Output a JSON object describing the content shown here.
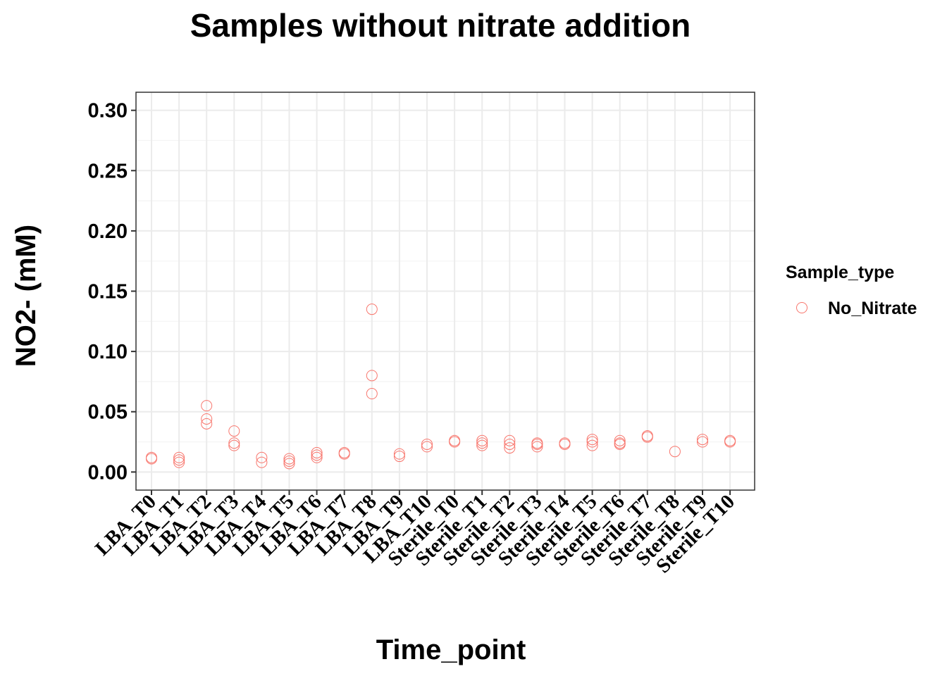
{
  "chart_data": {
    "type": "scatter",
    "title": "Samples without nitrate addition",
    "xlabel": "Time_point",
    "ylabel": "NO2- (mM)",
    "categories": [
      "LBA_T0",
      "LBA_T1",
      "LBA_T2",
      "LBA_T3",
      "LBA_T4",
      "LBA_T5",
      "LBA_T6",
      "LBA_T7",
      "LBA_T8",
      "LBA_T9",
      "LBA_T10",
      "Sterile_T0",
      "Sterile_T1",
      "Sterile_T2",
      "Sterile_T3",
      "Sterile_T4",
      "Sterile_T5",
      "Sterile_T6",
      "Sterile_T7",
      "Sterile_T8",
      "Sterile_T9",
      "Sterile_T10"
    ],
    "yticks": [
      "0.00",
      "0.05",
      "0.10",
      "0.15",
      "0.20",
      "0.25",
      "0.30"
    ],
    "ylim": [
      -0.015,
      0.315
    ],
    "grid": true,
    "legend": {
      "title": "Sample_type",
      "position": "right"
    },
    "colors": {
      "series": "#F8766D",
      "grid_major": "#EBEBEB",
      "grid_minor": "#F4F4F4",
      "border": "#333333"
    },
    "series": [
      {
        "name": "No_Nitrate",
        "points": [
          {
            "x": "LBA_T0",
            "values": [
              0.012,
              0.011
            ]
          },
          {
            "x": "LBA_T1",
            "values": [
              0.012,
              0.01,
              0.008
            ]
          },
          {
            "x": "LBA_T2",
            "values": [
              0.055,
              0.044,
              0.04
            ]
          },
          {
            "x": "LBA_T3",
            "values": [
              0.034,
              0.024,
              0.022
            ]
          },
          {
            "x": "LBA_T4",
            "values": [
              0.012,
              0.008
            ]
          },
          {
            "x": "LBA_T5",
            "values": [
              0.011,
              0.009,
              0.007
            ]
          },
          {
            "x": "LBA_T6",
            "values": [
              0.016,
              0.014,
              0.012
            ]
          },
          {
            "x": "LBA_T7",
            "values": [
              0.016,
              0.015
            ]
          },
          {
            "x": "LBA_T8",
            "values": [
              0.135,
              0.08,
              0.065
            ]
          },
          {
            "x": "LBA_T9",
            "values": [
              0.015,
              0.013
            ]
          },
          {
            "x": "LBA_T10",
            "values": [
              0.023,
              0.021
            ]
          },
          {
            "x": "Sterile_T0",
            "values": [
              0.026,
              0.025
            ]
          },
          {
            "x": "Sterile_T1",
            "values": [
              0.026,
              0.024,
              0.022
            ]
          },
          {
            "x": "Sterile_T2",
            "values": [
              0.026,
              0.023,
              0.02
            ]
          },
          {
            "x": "Sterile_T3",
            "values": [
              0.024,
              0.023,
              0.021
            ]
          },
          {
            "x": "Sterile_T4",
            "values": [
              0.024,
              0.023
            ]
          },
          {
            "x": "Sterile_T5",
            "values": [
              0.027,
              0.025,
              0.022
            ]
          },
          {
            "x": "Sterile_T6",
            "values": [
              0.026,
              0.024,
              0.023
            ]
          },
          {
            "x": "Sterile_T7",
            "values": [
              0.03,
              0.029
            ]
          },
          {
            "x": "Sterile_T8",
            "values": [
              0.017
            ]
          },
          {
            "x": "Sterile_T9",
            "values": [
              0.027,
              0.025
            ]
          },
          {
            "x": "Sterile_T10",
            "values": [
              0.026,
              0.025
            ]
          }
        ]
      }
    ]
  }
}
